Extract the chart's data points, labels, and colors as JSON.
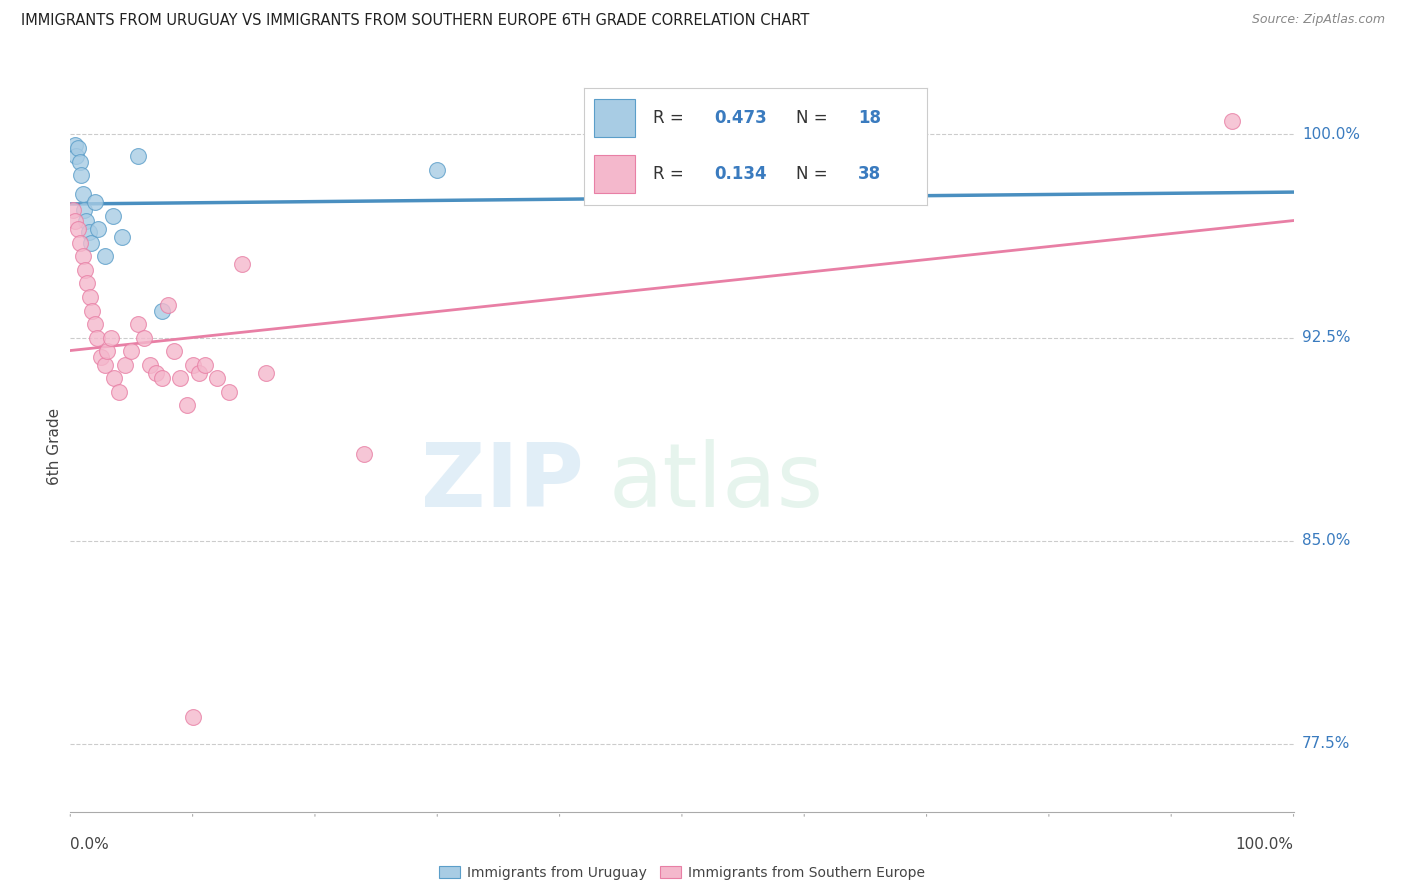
{
  "title": "IMMIGRANTS FROM URUGUAY VS IMMIGRANTS FROM SOUTHERN EUROPE 6TH GRADE CORRELATION CHART",
  "source": "Source: ZipAtlas.com",
  "ylabel": "6th Grade",
  "y_ticks": [
    77.5,
    85.0,
    92.5,
    100.0
  ],
  "y_tick_labels": [
    "77.5%",
    "85.0%",
    "92.5%",
    "100.0%"
  ],
  "x_range": [
    0,
    100
  ],
  "y_range": [
    75,
    102
  ],
  "legend_r_blue": "0.473",
  "legend_n_blue": "18",
  "legend_r_pink": "0.134",
  "legend_n_pink": "38",
  "legend_label_blue": "Immigrants from Uruguay",
  "legend_label_pink": "Immigrants from Southern Europe",
  "blue_color": "#a8cce4",
  "pink_color": "#f4b8cc",
  "blue_edge_color": "#5b9ec9",
  "pink_edge_color": "#e87fa5",
  "blue_line_color": "#4a8fc0",
  "pink_line_color": "#e87fa5",
  "legend_value_color": "#3a7bbf",
  "blue_x": [
    0.4,
    0.5,
    0.6,
    0.8,
    0.9,
    1.0,
    1.1,
    1.3,
    1.5,
    1.7,
    2.0,
    2.3,
    2.8,
    3.5,
    4.2,
    5.5,
    7.5,
    30.0
  ],
  "blue_y": [
    99.6,
    99.2,
    99.5,
    99.0,
    98.5,
    97.8,
    97.2,
    96.8,
    96.4,
    96.0,
    97.5,
    96.5,
    95.5,
    97.0,
    96.2,
    99.2,
    93.5,
    98.7
  ],
  "pink_x": [
    0.2,
    0.4,
    0.6,
    0.8,
    1.0,
    1.2,
    1.4,
    1.6,
    1.8,
    2.0,
    2.2,
    2.5,
    2.8,
    3.0,
    3.3,
    3.6,
    4.0,
    4.5,
    5.0,
    5.5,
    6.0,
    6.5,
    7.0,
    7.5,
    8.0,
    8.5,
    9.0,
    9.5,
    10.0,
    10.5,
    11.0,
    12.0,
    13.0,
    14.0,
    16.0,
    24.0,
    95.0,
    10.0
  ],
  "pink_y": [
    97.2,
    96.8,
    96.5,
    96.0,
    95.5,
    95.0,
    94.5,
    94.0,
    93.5,
    93.0,
    92.5,
    91.8,
    91.5,
    92.0,
    92.5,
    91.0,
    90.5,
    91.5,
    92.0,
    93.0,
    92.5,
    91.5,
    91.2,
    91.0,
    93.7,
    92.0,
    91.0,
    90.0,
    91.5,
    91.2,
    91.5,
    91.0,
    90.5,
    95.2,
    91.2,
    88.2,
    100.5,
    78.5
  ],
  "background_color": "#ffffff",
  "grid_color": "#cccccc",
  "title_color": "#222222",
  "source_color": "#888888",
  "axis_label_color": "#444444",
  "tick_color": "#3a7bbf"
}
